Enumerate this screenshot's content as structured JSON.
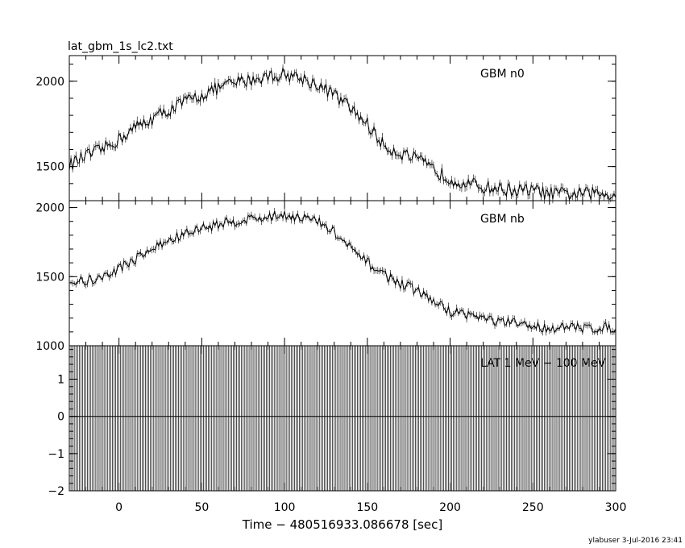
{
  "chart_data": {
    "title": "lat_gbm_1s_lc2.txt",
    "xlabel": "Time − 480516933.086678 [sec]",
    "xlim": [
      -30,
      300
    ],
    "x_ticks": [
      0,
      50,
      100,
      150,
      200,
      250,
      300
    ],
    "x_tick_labels": [
      "0",
      "50",
      "100",
      "150",
      "200",
      "250",
      "300"
    ],
    "footer": "ylabuser  3-Jul-2016 23:41",
    "panels": [
      {
        "label": "GBM n0",
        "type": "line",
        "ylim": [
          1300,
          2150
        ],
        "y_ticks": [
          1500,
          2000
        ],
        "y_tick_labels": [
          "1500",
          "2000"
        ],
        "x": [
          -30,
          -20,
          -10,
          0,
          10,
          20,
          30,
          40,
          50,
          60,
          70,
          80,
          90,
          100,
          110,
          120,
          130,
          140,
          150,
          160,
          170,
          180,
          190,
          200,
          210,
          220,
          230,
          240,
          250,
          260,
          270,
          280,
          290,
          300
        ],
        "values": [
          1510,
          1560,
          1600,
          1660,
          1730,
          1780,
          1830,
          1880,
          1920,
          1960,
          1990,
          2010,
          2030,
          2040,
          2020,
          1980,
          1920,
          1840,
          1750,
          1620,
          1580,
          1540,
          1480,
          1430,
          1400,
          1380,
          1370,
          1360,
          1360,
          1340,
          1340,
          1340,
          1340,
          1340
        ]
      },
      {
        "label": "GBM nb",
        "type": "line",
        "ylim": [
          1000,
          2050
        ],
        "y_ticks": [
          1000,
          1500,
          2000
        ],
        "y_tick_labels": [
          "1000",
          "1500",
          "2000"
        ],
        "x": [
          -30,
          -20,
          -10,
          0,
          10,
          20,
          30,
          40,
          50,
          60,
          70,
          80,
          90,
          100,
          110,
          120,
          130,
          140,
          150,
          160,
          170,
          180,
          190,
          200,
          210,
          220,
          230,
          240,
          250,
          260,
          270,
          280,
          290,
          300
        ],
        "values": [
          1460,
          1470,
          1490,
          1560,
          1630,
          1700,
          1760,
          1810,
          1850,
          1880,
          1900,
          1920,
          1930,
          1950,
          1930,
          1900,
          1820,
          1700,
          1600,
          1520,
          1450,
          1400,
          1320,
          1250,
          1230,
          1200,
          1170,
          1160,
          1140,
          1130,
          1130,
          1130,
          1130,
          1130
        ]
      },
      {
        "label": "LAT 1 MeV − 100 MeV",
        "type": "line",
        "ylim": [
          -2,
          1.9
        ],
        "y_ticks": [
          -2,
          -1,
          0,
          1
        ],
        "y_tick_labels": [
          "−2",
          "−1",
          "0",
          "1"
        ],
        "values": [
          0
        ],
        "note": "zero counts with full-height error bars every 1 s"
      }
    ]
  }
}
